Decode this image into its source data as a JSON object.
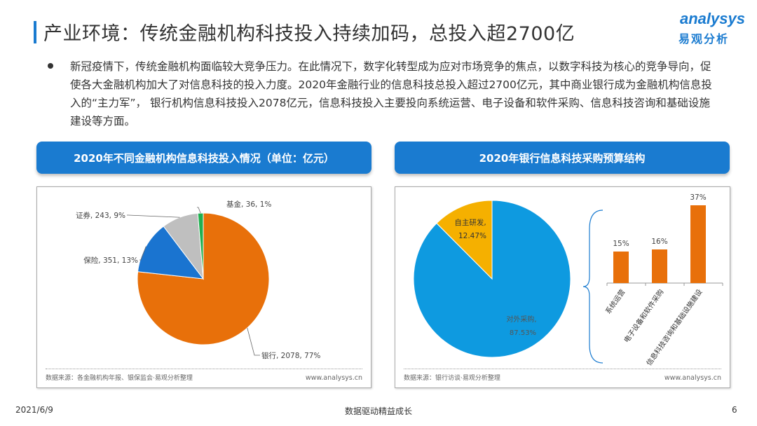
{
  "header": {
    "title": "产业环境：传统金融机构科技投入持续加码，总投入超2700亿",
    "logo_en": "analysys",
    "logo_cn": "易观分析"
  },
  "paragraph": "新冠疫情下，传统金融机构面临较大竞争压力。在此情况下，数字化转型成为应对市场竞争的焦点，以数字科技为核心的竞争导向，促使各大金融机构加大了对信息科技的投入力度。2020年金融行业的信息科技总投入超过2700亿元，其中商业银行成为金融机构信息投入的“主力军”， 银行机构信息科技投入2078亿元，信息科技投入主要投向系统运营、电子设备和软件采购、信息科技咨询和基础设施建设等方面。",
  "left_panel": {
    "heading": "2020年不同金融机构信息科技投入情况（单位：亿元）",
    "source": "数据来源：各金融机构年报、银保监会·易观分析整理",
    "website": "www.analysys.cn"
  },
  "right_panel": {
    "heading": "2020年银行信息科技采购预算结构",
    "source": "数据来源：银行访谈·易观分析整理",
    "website": "www.analysys.cn"
  },
  "chart_data": [
    {
      "type": "pie",
      "slices": [
        {
          "name": "银行",
          "value": 2078,
          "percent": "77%",
          "label": "银行, 2078, 77%",
          "color": "#e8700a"
        },
        {
          "name": "保险",
          "value": 351,
          "percent": "13%",
          "label": "保险, 351, 13%",
          "color": "#1a74d0"
        },
        {
          "name": "证券",
          "value": 243,
          "percent": "9%",
          "label": "证券, 243, 9%",
          "color": "#bfbfbf"
        },
        {
          "name": "基金",
          "value": 36,
          "percent": "1%",
          "label": "基金, 36, 1%",
          "color": "#20b050"
        }
      ]
    },
    {
      "type": "pie",
      "slices": [
        {
          "name": "对外采购",
          "value": 87.53,
          "label_name": "对外采购,",
          "label_value": "87.53%",
          "color": "#0e9ae0"
        },
        {
          "name": "自主研发",
          "value": 12.47,
          "label_name": "自主研发,",
          "label_value": "12.47%",
          "color": "#f5b000"
        }
      ]
    },
    {
      "type": "bar",
      "categories": [
        "系统运营",
        "电子设备和软件采购",
        "信息科技咨询和基础设施建设"
      ],
      "values": [
        15,
        16,
        37
      ],
      "labels": [
        "15%",
        "16%",
        "37%"
      ],
      "color": "#e8700a"
    }
  ],
  "footer": {
    "date": "2021/6/9",
    "slogan": "数据驱动精益成长",
    "page": "6"
  }
}
